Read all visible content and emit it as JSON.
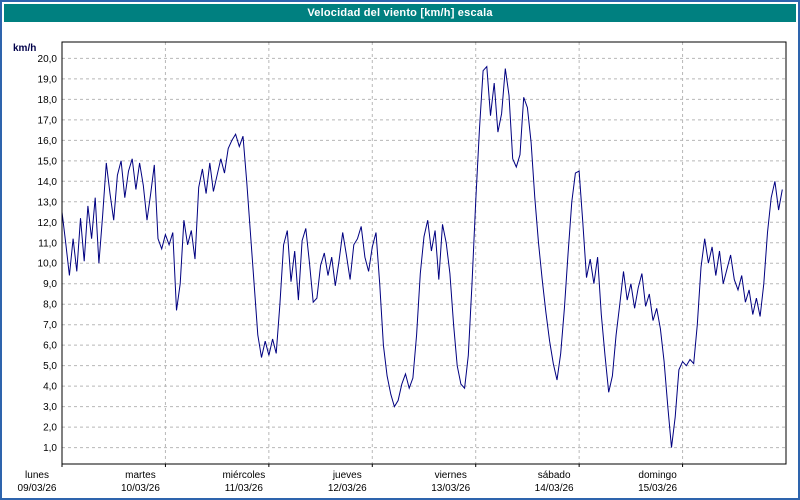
{
  "title": "Velocidad del viento [km/h] escala",
  "colors": {
    "titlebar_bg": "#008080",
    "titlebar_text": "#ffffff",
    "frame_border": "#2e64ad",
    "line": "#000080",
    "grid": "#b8b8b8",
    "plot_border": "#000000",
    "background": "#ffffff"
  },
  "chart_data": {
    "type": "line",
    "title": "Velocidad del viento [km/h] escala",
    "ylabel": "km/h",
    "grid": "dashed",
    "legend": "none",
    "ylim": [
      0.2,
      20.8
    ],
    "y_ticks": [
      1,
      2,
      3,
      4,
      5,
      6,
      7,
      8,
      9,
      10,
      11,
      12,
      13,
      14,
      15,
      16,
      17,
      18,
      19,
      20
    ],
    "y_tick_decimal_separator": ",",
    "x_labels": [
      {
        "day": "lunes",
        "date": "09/03/26"
      },
      {
        "day": "martes",
        "date": "10/03/26"
      },
      {
        "day": "miércoles",
        "date": "11/03/26"
      },
      {
        "day": "jueves",
        "date": "12/03/26"
      },
      {
        "day": "viernes",
        "date": "13/03/26"
      },
      {
        "day": "sábado",
        "date": "14/03/26"
      },
      {
        "day": "domingo",
        "date": "15/03/26"
      }
    ],
    "samples_per_day": 28,
    "series": [
      {
        "name": "Velocidad del viento",
        "color": "#000080",
        "values": [
          12.5,
          11.0,
          9.4,
          11.2,
          9.6,
          12.2,
          10.1,
          12.8,
          11.2,
          13.2,
          10.0,
          12.3,
          14.9,
          13.4,
          12.1,
          14.3,
          15.0,
          13.2,
          14.5,
          15.1,
          13.6,
          14.9,
          13.8,
          12.1,
          13.4,
          14.8,
          11.2,
          10.7,
          11.4,
          10.9,
          11.5,
          7.7,
          9.0,
          12.1,
          10.9,
          11.6,
          10.2,
          13.7,
          14.6,
          13.4,
          14.9,
          13.5,
          14.3,
          15.1,
          14.4,
          15.6,
          16.0,
          16.3,
          15.7,
          16.2,
          14.0,
          11.5,
          9.0,
          6.5,
          5.4,
          6.2,
          5.5,
          6.3,
          5.6,
          8.0,
          10.9,
          11.6,
          9.1,
          10.6,
          8.2,
          11.1,
          11.7,
          10.0,
          8.1,
          8.3,
          9.9,
          10.5,
          9.4,
          10.3,
          8.9,
          10.1,
          11.5,
          10.4,
          9.2,
          10.9,
          11.2,
          11.8,
          10.3,
          9.6,
          10.8,
          11.5,
          9.0,
          6.0,
          4.5,
          3.6,
          3.0,
          3.3,
          4.1,
          4.6,
          3.9,
          4.4,
          6.5,
          9.5,
          11.3,
          12.1,
          10.6,
          11.6,
          9.2,
          11.9,
          11.0,
          9.5,
          7.0,
          5.0,
          4.1,
          3.9,
          5.5,
          9.0,
          13.0,
          16.5,
          19.4,
          19.6,
          17.2,
          18.8,
          16.4,
          17.3,
          19.5,
          18.2,
          15.1,
          14.7,
          15.3,
          18.1,
          17.6,
          15.9,
          13.2,
          11.0,
          9.2,
          7.6,
          6.2,
          5.1,
          4.3,
          5.6,
          7.8,
          10.5,
          13.0,
          14.4,
          14.5,
          12.0,
          9.3,
          10.2,
          9.0,
          10.3,
          7.5,
          5.5,
          3.7,
          4.5,
          6.5,
          8.0,
          9.6,
          8.2,
          9.0,
          7.8,
          8.8,
          9.5,
          7.9,
          8.5,
          7.2,
          7.8,
          6.8,
          5.2,
          3.0,
          1.0,
          2.5,
          4.8,
          5.2,
          5.0,
          5.3,
          5.1,
          7.0,
          9.8,
          11.2,
          10.0,
          10.8,
          9.4,
          10.6,
          9.0,
          9.7,
          10.4,
          9.2,
          8.7,
          9.4,
          8.1,
          8.7,
          7.5,
          8.3,
          7.4,
          9.0,
          11.5,
          13.2,
          14.0,
          12.6,
          13.6
        ]
      }
    ]
  }
}
